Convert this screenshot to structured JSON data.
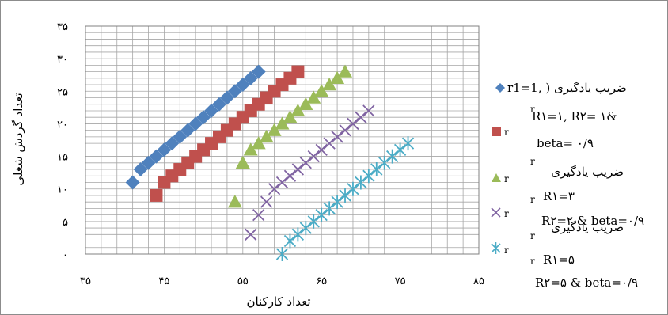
{
  "chart_data": {
    "type": "scatter",
    "title": "",
    "xlabel": "تعداد کارکنان",
    "ylabel": "تعداد گردش شغلی",
    "xlim": [
      35,
      85
    ],
    "ylim": [
      0,
      35
    ],
    "x_ticks": [
      {
        "v": 35,
        "label": "۳۵"
      },
      {
        "v": 45,
        "label": "۴۵"
      },
      {
        "v": 55,
        "label": "۵۵"
      },
      {
        "v": 65,
        "label": "۶۵"
      },
      {
        "v": 75,
        "label": "۷۵"
      },
      {
        "v": 85,
        "label": "۸۵"
      }
    ],
    "y_ticks": [
      {
        "v": 0,
        "label": "۰"
      },
      {
        "v": 5,
        "label": "۵"
      },
      {
        "v": 10,
        "label": "۱۰"
      },
      {
        "v": 15,
        "label": "۱۵"
      },
      {
        "v": 20,
        "label": "۲۰"
      },
      {
        "v": 25,
        "label": "۲۵"
      },
      {
        "v": 30,
        "label": "۳۰"
      },
      {
        "v": 35,
        "label": "۳۵"
      }
    ],
    "grid": true,
    "legend_position": "right",
    "series": [
      {
        "name": "ضریب یادگیری ( ,r1=1",
        "marker": "diamond",
        "color": "#4f81bd",
        "points": [
          [
            41,
            11
          ],
          [
            42,
            13
          ],
          [
            43,
            14
          ],
          [
            44,
            15
          ],
          [
            45,
            16
          ],
          [
            46,
            17
          ],
          [
            47,
            18
          ],
          [
            48,
            19
          ],
          [
            49,
            20
          ],
          [
            50,
            21
          ],
          [
            51,
            22
          ],
          [
            52,
            23
          ],
          [
            53,
            24
          ],
          [
            54,
            25
          ],
          [
            55,
            26
          ],
          [
            56,
            27
          ],
          [
            57,
            28
          ]
        ]
      },
      {
        "name": "r",
        "marker": "square",
        "color": "#c0504d",
        "points": [
          [
            44,
            9
          ],
          [
            45,
            11
          ],
          [
            46,
            12
          ],
          [
            47,
            13
          ],
          [
            48,
            14
          ],
          [
            49,
            15
          ],
          [
            50,
            16
          ],
          [
            51,
            17
          ],
          [
            52,
            18
          ],
          [
            53,
            19
          ],
          [
            54,
            20
          ],
          [
            55,
            21
          ],
          [
            56,
            22
          ],
          [
            57,
            23
          ],
          [
            58,
            24
          ],
          [
            59,
            25
          ],
          [
            60,
            26
          ],
          [
            61,
            27
          ],
          [
            62,
            28
          ]
        ]
      },
      {
        "name": "r",
        "marker": "triangle",
        "color": "#9bbb59",
        "points": [
          [
            54,
            8
          ],
          [
            55,
            14
          ],
          [
            56,
            16
          ],
          [
            57,
            17
          ],
          [
            58,
            18
          ],
          [
            59,
            19
          ],
          [
            60,
            20
          ],
          [
            61,
            21
          ],
          [
            62,
            22
          ],
          [
            63,
            23
          ],
          [
            64,
            24
          ],
          [
            65,
            25
          ],
          [
            66,
            26
          ],
          [
            67,
            27
          ],
          [
            68,
            28
          ]
        ]
      },
      {
        "name": "r",
        "marker": "x",
        "color": "#8064a2",
        "points": [
          [
            56,
            3
          ],
          [
            57,
            6
          ],
          [
            58,
            8
          ],
          [
            59,
            10
          ],
          [
            60,
            11
          ],
          [
            61,
            12
          ],
          [
            62,
            13
          ],
          [
            63,
            14
          ],
          [
            64,
            15
          ],
          [
            65,
            16
          ],
          [
            66,
            17
          ],
          [
            67,
            18
          ],
          [
            68,
            19
          ],
          [
            69,
            20
          ],
          [
            70,
            21
          ],
          [
            71,
            22
          ]
        ]
      },
      {
        "name": "r",
        "marker": "asterisk",
        "color": "#4bacc6",
        "points": [
          [
            60,
            0
          ],
          [
            61,
            2
          ],
          [
            62,
            3
          ],
          [
            63,
            4
          ],
          [
            64,
            5
          ],
          [
            65,
            6
          ],
          [
            66,
            7
          ],
          [
            67,
            8
          ],
          [
            68,
            9
          ],
          [
            69,
            10
          ],
          [
            70,
            11
          ],
          [
            71,
            12
          ],
          [
            72,
            13
          ],
          [
            73,
            14
          ],
          [
            74,
            15
          ],
          [
            75,
            16
          ],
          [
            76,
            17
          ]
        ]
      }
    ],
    "legend_text": {
      "s1": "ضریب یادگیری ( ,r1=1",
      "s1b": "R۱=۱, R۲= ۱&",
      "s1c": "beta= ۰/۹",
      "s2": "r",
      "s3": "ضریب یادگیری",
      "s3b": "R۱=۳",
      "s4": "R۲=۲ & beta=۰/۹",
      "s5": "ضریب یادگیری",
      "s5b": "R۱=۵",
      "s5c": "R۲=۵ & beta=۰/۹"
    }
  }
}
